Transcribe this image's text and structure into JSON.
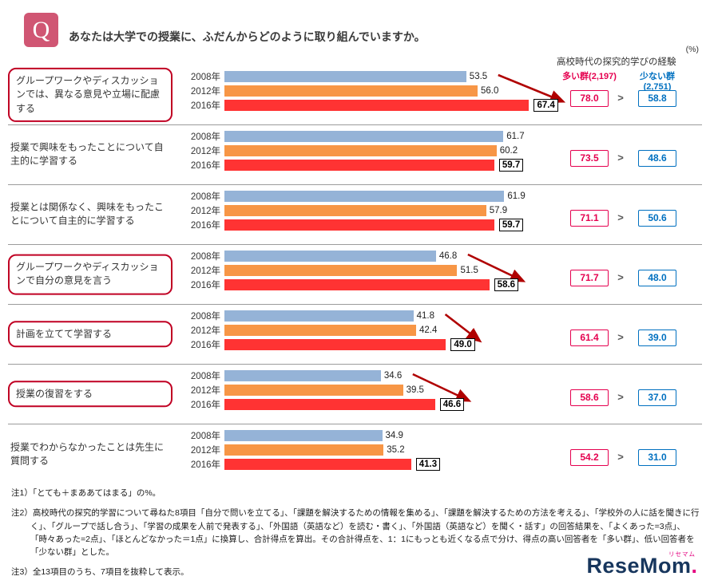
{
  "header": {
    "q_label": "Q",
    "question": "あなたは大学での授業に、ふだんからどのように取り組んでいますか。"
  },
  "right_header": {
    "unit": "(%)",
    "title": "高校時代の探究的学びの経験",
    "group_high": "多い群(2,197)",
    "group_low": "少ない群(2,751)",
    "comparator": ">"
  },
  "chart_data": {
    "type": "bar",
    "orientation": "horizontal",
    "title": "あなたは大学での授業に、ふだんからどのように取り組んでいますか。",
    "unit": "%",
    "xlim": [
      0,
      80
    ],
    "series_labels": [
      "2008年",
      "2012年",
      "2016年"
    ],
    "items": [
      {
        "label": "グループワークやディスカッションでは、異なる意見や立場に配慮する",
        "highlighted": true,
        "arrow": true,
        "values": [
          "53.5",
          "56.0",
          "67.4"
        ],
        "high_group": "78.0",
        "low_group": "58.8"
      },
      {
        "label": "授業で興味をもったことについて自主的に学習する",
        "highlighted": false,
        "arrow": false,
        "values": [
          "61.7",
          "60.2",
          "59.7"
        ],
        "high_group": "73.5",
        "low_group": "48.6"
      },
      {
        "label": "授業とは関係なく、興味をもったことについて自主的に学習する",
        "highlighted": false,
        "arrow": false,
        "values": [
          "61.9",
          "57.9",
          "59.7"
        ],
        "high_group": "71.1",
        "low_group": "50.6"
      },
      {
        "label": "グループワークやディスカッションで自分の意見を言う",
        "highlighted": true,
        "arrow": true,
        "values": [
          "46.8",
          "51.5",
          "58.6"
        ],
        "high_group": "71.7",
        "low_group": "48.0"
      },
      {
        "label": "計画を立てて学習する",
        "highlighted": true,
        "arrow": true,
        "values": [
          "41.8",
          "42.4",
          "49.0"
        ],
        "high_group": "61.4",
        "low_group": "39.0"
      },
      {
        "label": "授業の復習をする",
        "highlighted": true,
        "arrow": true,
        "values": [
          "34.6",
          "39.5",
          "46.6"
        ],
        "high_group": "58.6",
        "low_group": "37.0"
      },
      {
        "label": "授業でわからなかったことは先生に質問する",
        "highlighted": false,
        "arrow": false,
        "values": [
          "34.9",
          "35.2",
          "41.3"
        ],
        "high_group": "54.2",
        "low_group": "31.0"
      }
    ]
  },
  "notes": [
    "注1）「とても＋まああてはまる」の%。",
    "注2）高校時代の探究的学習について尋ねた8項目「自分で問いを立てる」、「課題を解決するための情報を集める」、「課題を解決するための方法を考える」、「学校外の人に話を聞きに行く」、「グループで話し合う」、「学習の成果を人前で発表する」、「外国語（英語など）を読む・書く」、「外国語（英語など）を聞く・話す」の回答結果を、「よくあった=3点」、「時々あった=2点」、「ほとんどなかった＝1点」に換算し、合計得点を算出。その合計得点を、1：1にもっとも近くなる点で分け、得点の高い回答者を「多い群」、低い回答者を「少ない群」とした。",
    "注3）全13項目のうち、7項目を抜粋して表示。"
  ],
  "colors": {
    "bar_2008": "#95b3d7",
    "bar_2012": "#f79646",
    "bar_2016": "#ff3333",
    "high_group": "#e5004f",
    "low_group": "#0070c0",
    "arrow": "#b00000",
    "question_badge": "#d05673",
    "label_box_border": "#c00023"
  },
  "logo": {
    "text": "ReseMom",
    "dot": ".",
    "furigana": "リセマム"
  }
}
